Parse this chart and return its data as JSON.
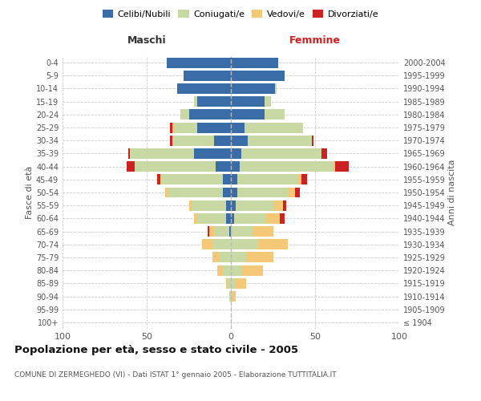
{
  "age_groups": [
    "100+",
    "95-99",
    "90-94",
    "85-89",
    "80-84",
    "75-79",
    "70-74",
    "65-69",
    "60-64",
    "55-59",
    "50-54",
    "45-49",
    "40-44",
    "35-39",
    "30-34",
    "25-29",
    "20-24",
    "15-19",
    "10-14",
    "5-9",
    "0-4"
  ],
  "birth_years": [
    "≤ 1904",
    "1905-1909",
    "1910-1914",
    "1915-1919",
    "1920-1924",
    "1925-1929",
    "1930-1934",
    "1935-1939",
    "1940-1944",
    "1945-1949",
    "1950-1954",
    "1955-1959",
    "1960-1964",
    "1965-1969",
    "1970-1974",
    "1975-1979",
    "1980-1984",
    "1985-1989",
    "1990-1994",
    "1995-1999",
    "2000-2004"
  ],
  "maschi": {
    "celibi": [
      0,
      0,
      0,
      0,
      0,
      0,
      0,
      1,
      3,
      3,
      5,
      5,
      9,
      22,
      10,
      20,
      25,
      20,
      32,
      28,
      38
    ],
    "coniugati": [
      0,
      0,
      1,
      2,
      5,
      7,
      11,
      9,
      17,
      20,
      32,
      36,
      48,
      38,
      25,
      14,
      5,
      2,
      0,
      0,
      0
    ],
    "vedovi": [
      0,
      0,
      0,
      1,
      3,
      4,
      6,
      3,
      2,
      2,
      2,
      1,
      0,
      0,
      0,
      1,
      0,
      0,
      0,
      0,
      0
    ],
    "divorziati": [
      0,
      0,
      0,
      0,
      0,
      0,
      0,
      1,
      0,
      0,
      0,
      2,
      5,
      1,
      1,
      1,
      0,
      0,
      0,
      0,
      0
    ]
  },
  "femmine": {
    "nubili": [
      0,
      0,
      0,
      0,
      0,
      0,
      0,
      0,
      2,
      3,
      4,
      4,
      5,
      6,
      10,
      8,
      20,
      20,
      26,
      32,
      28
    ],
    "coniugate": [
      0,
      0,
      1,
      3,
      6,
      9,
      16,
      13,
      19,
      22,
      30,
      36,
      56,
      48,
      38,
      35,
      12,
      4,
      1,
      0,
      0
    ],
    "vedove": [
      0,
      0,
      2,
      6,
      13,
      16,
      18,
      12,
      8,
      6,
      4,
      2,
      1,
      0,
      0,
      0,
      0,
      0,
      0,
      0,
      0
    ],
    "divorziate": [
      0,
      0,
      0,
      0,
      0,
      0,
      0,
      0,
      3,
      2,
      3,
      3,
      8,
      3,
      1,
      0,
      0,
      0,
      0,
      0,
      0
    ]
  },
  "colors": {
    "celibi_nubili": "#3a6ca8",
    "coniugati": "#c8d9a4",
    "vedovi": "#f5c878",
    "divorziati": "#cc2222"
  },
  "xlim": 100,
  "title": "Popolazione per età, sesso e stato civile - 2005",
  "subtitle": "COMUNE DI ZERMEGHEDO (VI) - Dati ISTAT 1° gennaio 2005 - Elaborazione TUTTITALIA.IT",
  "ylabel_left": "Fasce di età",
  "ylabel_right": "Anni di nascita",
  "xlabel_maschi": "Maschi",
  "xlabel_femmine": "Femmine",
  "bg_color": "#ffffff",
  "grid_color": "#cccccc",
  "legend_labels": [
    "Celibi/Nubili",
    "Coniugati/e",
    "Vedovi/e",
    "Divorziati/e"
  ]
}
